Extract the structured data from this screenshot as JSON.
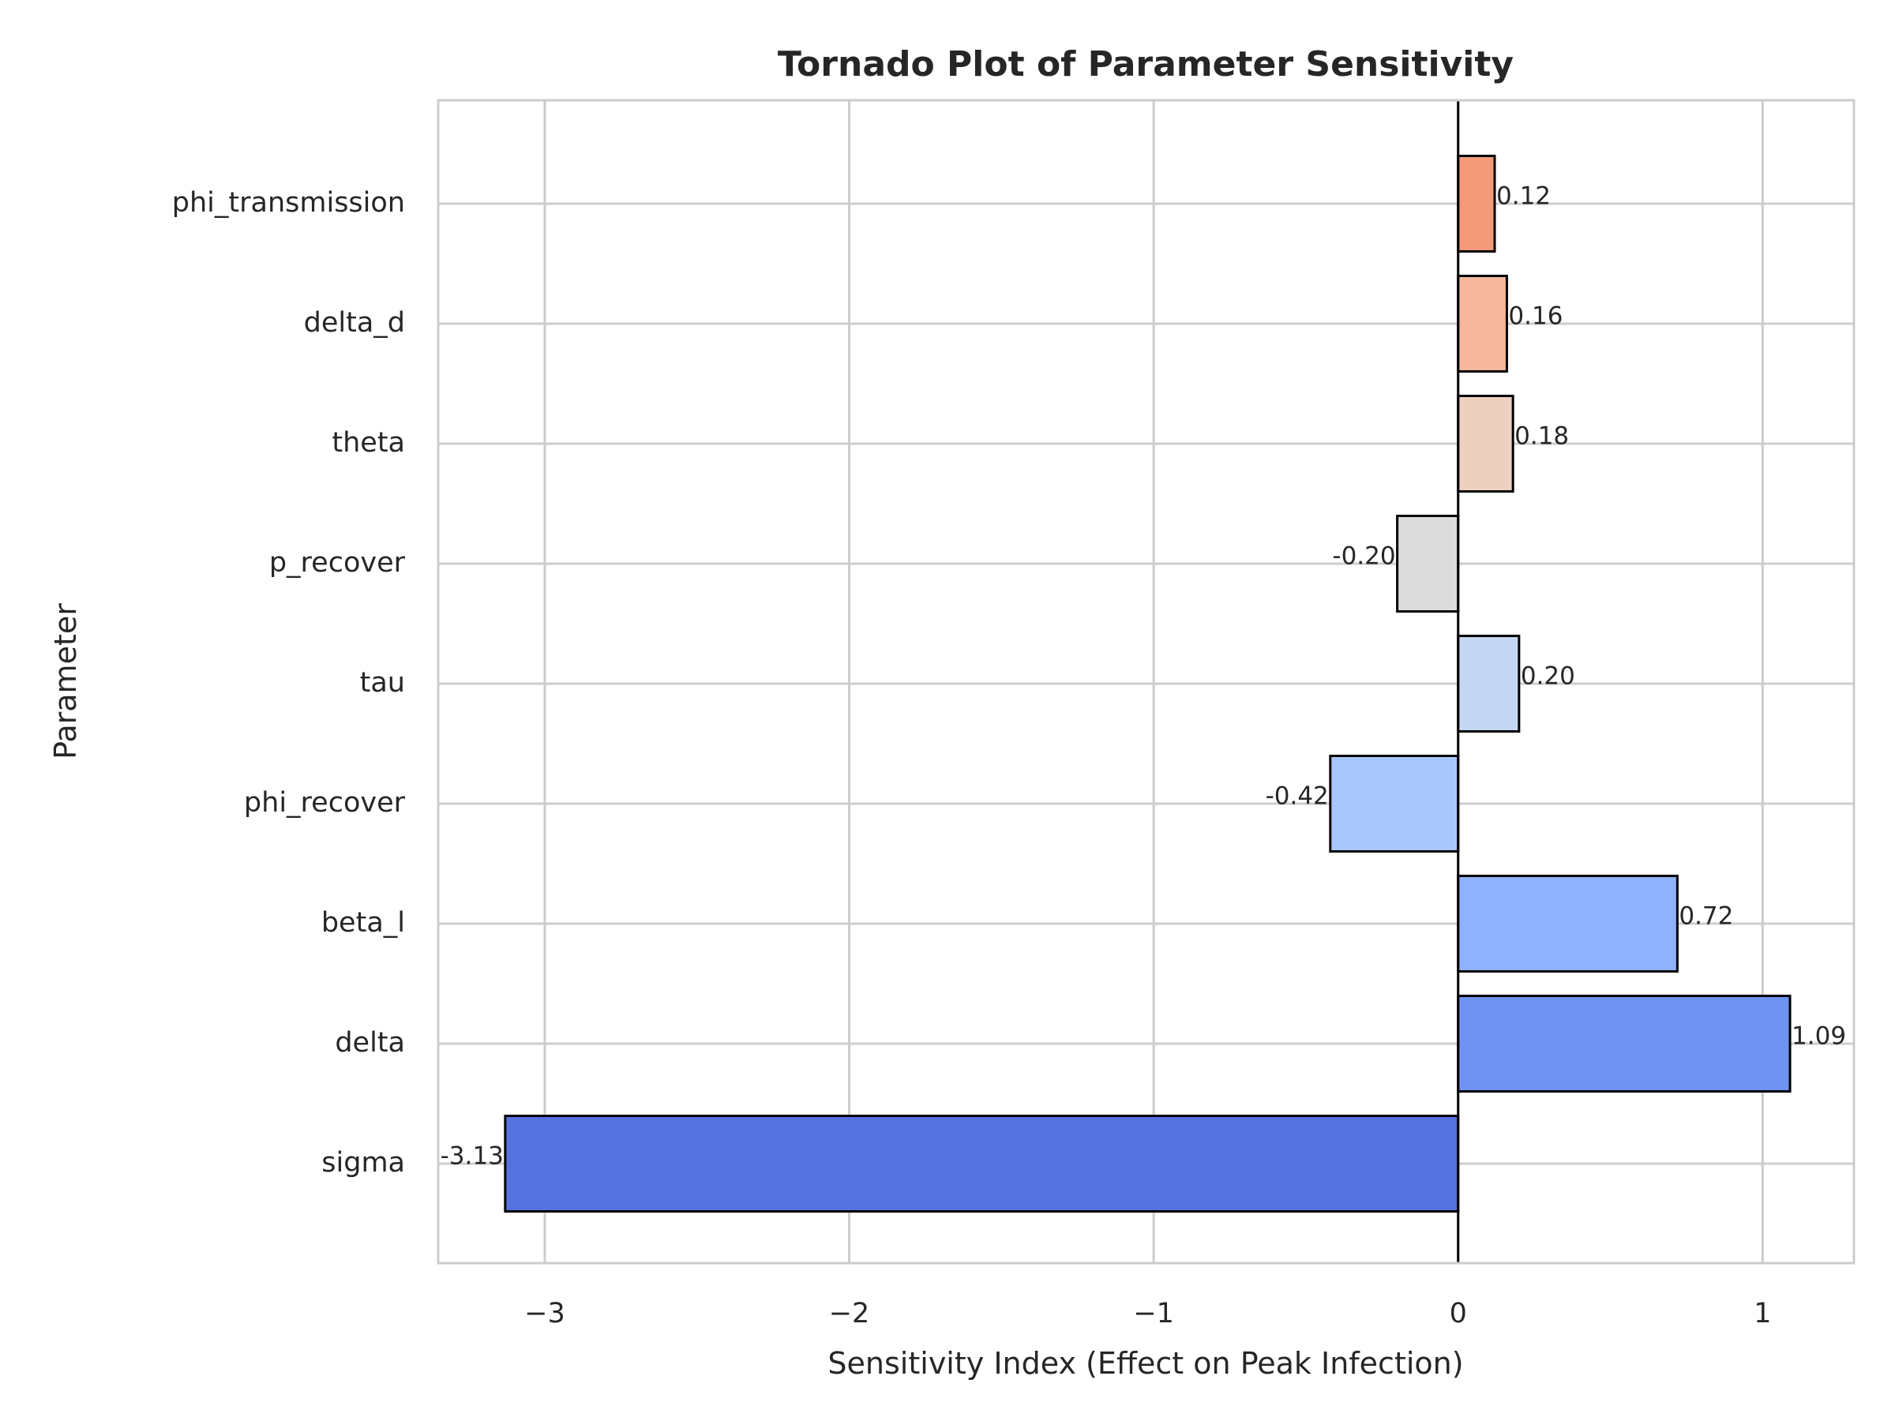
{
  "chart_data": {
    "type": "bar",
    "orientation": "horizontal",
    "title": "Tornado Plot of Parameter Sensitivity",
    "xlabel": "Sensitivity Index (Effect on Peak Infection)",
    "ylabel": "Parameter",
    "xlim": [
      -3.35,
      1.3
    ],
    "xticks": [
      -3,
      -2,
      -1,
      0,
      1
    ],
    "xtick_labels": [
      "−3",
      "−2",
      "−1",
      "0",
      "1"
    ],
    "grid": true,
    "categories": [
      "sigma",
      "delta",
      "beta_l",
      "phi_recover",
      "tau",
      "p_recover",
      "theta",
      "delta_d",
      "phi_transmission"
    ],
    "values": [
      -3.13,
      1.09,
      0.72,
      -0.42,
      0.2,
      -0.2,
      0.18,
      0.16,
      0.12
    ],
    "value_labels": [
      "-3.13",
      "1.09",
      "0.72",
      "-0.42",
      "0.20",
      "-0.20",
      "0.18",
      "0.16",
      "0.12"
    ],
    "colors": [
      "#5572df",
      "#7093f3",
      "#8fb1fe",
      "#aac7fd",
      "#c5d6f2",
      "#dddcdc",
      "#eed0c0",
      "#f6b89c",
      "#f39a7b"
    ]
  }
}
